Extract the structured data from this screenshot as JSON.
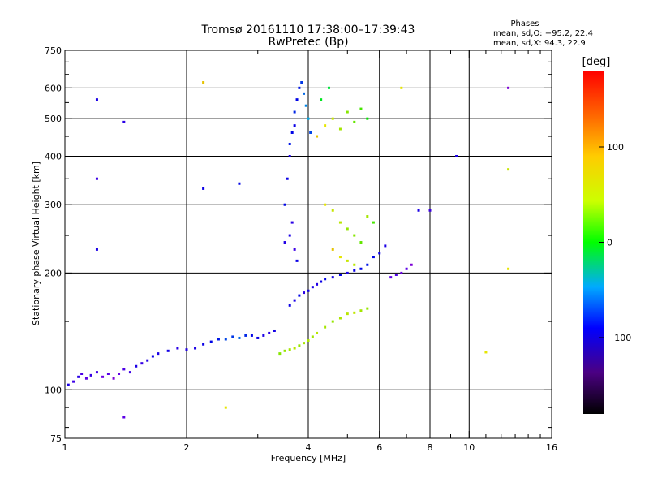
{
  "chart_data": {
    "type": "scatter",
    "title": "Tromsø 20161110 17:38:00–17:39:43",
    "subtitle": "RwPretec (Bp)",
    "phases": {
      "heading": "Phases",
      "line_o": "mean, sd,O: −95.2, 22.4",
      "line_x": "mean, sd,X:  94.3, 22.9"
    },
    "xlabel": "Frequency [MHz]",
    "ylabel": "Stationary phase Virtual Height [km]",
    "x_scale": "log",
    "y_scale": "log",
    "xlim": [
      1,
      16
    ],
    "ylim": [
      75,
      750
    ],
    "x_ticks": [
      1,
      2,
      4,
      6,
      8,
      10,
      16
    ],
    "x_tick_labels": [
      "1",
      "2",
      "4",
      "6",
      "8",
      "10",
      "16"
    ],
    "x_minor_ticks": [
      3,
      5,
      7,
      9,
      11,
      12,
      13,
      14,
      15
    ],
    "y_ticks": [
      75,
      100,
      200,
      300,
      400,
      500,
      600,
      750
    ],
    "y_tick_labels": [
      "75",
      "100",
      "200",
      "300",
      "400",
      "500",
      "600",
      "750"
    ],
    "y_minor_ticks": [
      80,
      90,
      150,
      250,
      350,
      450,
      550,
      650,
      700
    ],
    "grid": true,
    "grid_x": [
      2,
      4,
      6,
      8,
      10
    ],
    "grid_y": [
      100,
      200,
      300,
      400,
      500,
      600
    ],
    "colorbar": {
      "label": "[deg]",
      "range": [
        -180,
        180
      ],
      "tick_values": [
        100,
        0,
        -100
      ],
      "tick_labels": [
        "100",
        "0",
        "−100"
      ]
    },
    "series": [
      {
        "kind": "low E-region trace",
        "points": [
          [
            1.02,
            103,
            -110
          ],
          [
            1.05,
            105,
            -120
          ],
          [
            1.08,
            108,
            -115
          ],
          [
            1.1,
            110,
            -125
          ],
          [
            1.13,
            107,
            -130
          ],
          [
            1.16,
            109,
            -118
          ],
          [
            1.2,
            111,
            -122
          ],
          [
            1.24,
            108,
            -135
          ],
          [
            1.28,
            110,
            -128
          ],
          [
            1.32,
            107,
            -140
          ],
          [
            1.36,
            110,
            -132
          ],
          [
            1.4,
            113,
            -125
          ],
          [
            1.45,
            111,
            -120
          ],
          [
            1.5,
            115,
            -110
          ],
          [
            1.55,
            117,
            -118
          ],
          [
            1.6,
            119,
            -112
          ],
          [
            1.65,
            122,
            -105
          ],
          [
            1.7,
            124,
            -110
          ],
          [
            1.8,
            126,
            -108
          ],
          [
            1.9,
            128,
            -115
          ],
          [
            2.0,
            127,
            -112
          ],
          [
            2.1,
            128,
            -110
          ],
          [
            2.2,
            131,
            -105
          ],
          [
            2.3,
            133,
            -100
          ],
          [
            2.4,
            135,
            -95
          ],
          [
            2.5,
            135,
            -80
          ],
          [
            2.6,
            137,
            -85
          ],
          [
            2.7,
            136,
            -70
          ],
          [
            2.8,
            138,
            -90
          ],
          [
            2.9,
            138,
            -100
          ],
          [
            3.0,
            136,
            -105
          ],
          [
            3.1,
            138,
            -110
          ],
          [
            3.2,
            140,
            -115
          ],
          [
            3.3,
            142,
            -108
          ]
        ]
      },
      {
        "kind": "low X-mode trace",
        "points": [
          [
            3.4,
            124,
            80
          ],
          [
            3.5,
            126,
            85
          ],
          [
            3.6,
            127,
            90
          ],
          [
            3.7,
            128,
            95
          ],
          [
            3.8,
            130,
            85
          ],
          [
            3.9,
            132,
            90
          ],
          [
            4.0,
            134,
            92
          ],
          [
            4.1,
            137,
            88
          ],
          [
            4.2,
            140,
            95
          ],
          [
            4.4,
            145,
            90
          ],
          [
            4.6,
            150,
            85
          ],
          [
            4.8,
            153,
            92
          ],
          [
            5.0,
            157,
            95
          ],
          [
            5.2,
            158,
            98
          ],
          [
            5.4,
            160,
            90
          ],
          [
            5.6,
            162,
            85
          ]
        ]
      },
      {
        "kind": "O-mode F trace",
        "points": [
          [
            3.6,
            165,
            -105
          ],
          [
            3.7,
            170,
            -110
          ],
          [
            3.8,
            175,
            -100
          ],
          [
            3.9,
            178,
            -115
          ],
          [
            4.0,
            180,
            -108
          ],
          [
            4.1,
            184,
            -110
          ],
          [
            4.2,
            187,
            -112
          ],
          [
            4.3,
            190,
            -105
          ],
          [
            4.4,
            193,
            -100
          ],
          [
            4.6,
            195,
            -108
          ],
          [
            4.8,
            198,
            -102
          ],
          [
            5.0,
            200,
            -110
          ],
          [
            5.2,
            203,
            -105
          ],
          [
            5.4,
            205,
            -100
          ],
          [
            5.6,
            210,
            -95
          ],
          [
            5.8,
            220,
            -100
          ],
          [
            6.0,
            225,
            -105
          ],
          [
            6.2,
            235,
            -110
          ],
          [
            6.4,
            195,
            -130
          ],
          [
            6.6,
            198,
            -125
          ],
          [
            6.8,
            200,
            -135
          ],
          [
            7.0,
            205,
            -130
          ],
          [
            7.2,
            210,
            -140
          ]
        ]
      },
      {
        "kind": "vertical spread trace",
        "points": [
          [
            3.5,
            300,
            -100
          ],
          [
            3.55,
            350,
            -105
          ],
          [
            3.6,
            400,
            -110
          ],
          [
            3.6,
            430,
            -95
          ],
          [
            3.65,
            460,
            -100
          ],
          [
            3.7,
            480,
            -105
          ],
          [
            3.7,
            520,
            -90
          ],
          [
            3.75,
            560,
            -100
          ],
          [
            3.8,
            600,
            -95
          ],
          [
            3.85,
            620,
            -85
          ],
          [
            3.9,
            580,
            -70
          ],
          [
            3.95,
            540,
            -60
          ],
          [
            4.0,
            500,
            -50
          ],
          [
            4.05,
            460,
            -80
          ],
          [
            3.6,
            250,
            -110
          ],
          [
            3.65,
            270,
            -115
          ],
          [
            3.7,
            230,
            -120
          ],
          [
            3.75,
            215,
            -105
          ],
          [
            3.5,
            240,
            -112
          ]
        ]
      },
      {
        "kind": "upper X-mode cluster",
        "points": [
          [
            4.2,
            450,
            120
          ],
          [
            4.4,
            480,
            110
          ],
          [
            4.6,
            500,
            100
          ],
          [
            4.8,
            470,
            90
          ],
          [
            5.0,
            520,
            80
          ],
          [
            5.2,
            490,
            70
          ],
          [
            5.4,
            530,
            60
          ],
          [
            5.6,
            500,
            40
          ],
          [
            4.3,
            560,
            30
          ],
          [
            4.5,
            600,
            20
          ],
          [
            4.4,
            300,
            110
          ],
          [
            4.6,
            290,
            100
          ],
          [
            4.8,
            270,
            95
          ],
          [
            5.0,
            260,
            85
          ],
          [
            5.2,
            250,
            80
          ],
          [
            5.4,
            240,
            70
          ],
          [
            5.6,
            280,
            90
          ],
          [
            5.8,
            270,
            60
          ],
          [
            4.6,
            230,
            120
          ],
          [
            4.8,
            220,
            110
          ],
          [
            5.0,
            215,
            100
          ],
          [
            5.2,
            210,
            95
          ]
        ]
      },
      {
        "kind": "scattered points",
        "points": [
          [
            1.2,
            560,
            -110
          ],
          [
            1.4,
            490,
            -115
          ],
          [
            1.2,
            350,
            -120
          ],
          [
            1.2,
            230,
            -110
          ],
          [
            1.4,
            85,
            -130
          ],
          [
            2.2,
            330,
            -105
          ],
          [
            2.2,
            620,
            120
          ],
          [
            2.7,
            340,
            -100
          ],
          [
            2.5,
            90,
            110
          ],
          [
            6.8,
            600,
            110
          ],
          [
            9.3,
            400,
            -110
          ],
          [
            12.5,
            600,
            -140
          ],
          [
            12.5,
            370,
            100
          ],
          [
            12.5,
            205,
            110
          ],
          [
            11.0,
            125,
            110
          ],
          [
            7.5,
            290,
            -110
          ],
          [
            8.0,
            290,
            -120
          ]
        ]
      }
    ]
  }
}
